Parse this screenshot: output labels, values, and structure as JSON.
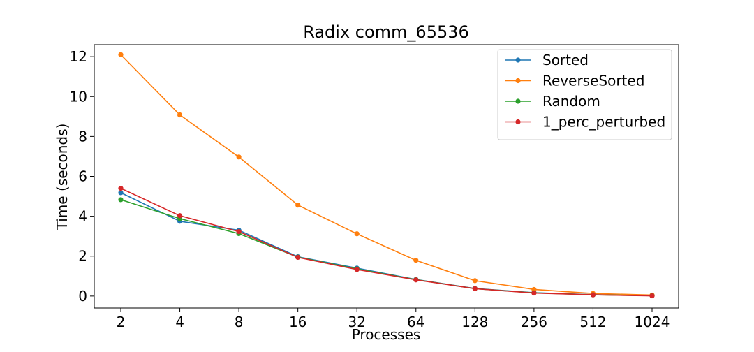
{
  "chart_data": {
    "type": "line",
    "title": "Radix comm_65536",
    "xlabel": "Processes",
    "ylabel": "Time (seconds)",
    "categories": [
      "2",
      "4",
      "8",
      "16",
      "32",
      "64",
      "128",
      "256",
      "512",
      "1024"
    ],
    "ylim": [
      -0.6,
      12.6
    ],
    "yticks": [
      0,
      2,
      4,
      6,
      8,
      10,
      12
    ],
    "grid": false,
    "legend_position": "top-right",
    "series": [
      {
        "name": "Sorted",
        "color": "#1f77b4",
        "values": [
          5.18,
          3.75,
          3.3,
          1.97,
          1.4,
          0.83,
          0.38,
          0.17,
          0.07,
          0.02
        ]
      },
      {
        "name": "ReverseSorted",
        "color": "#ff7f0e",
        "values": [
          12.1,
          9.08,
          6.97,
          4.56,
          3.12,
          1.79,
          0.77,
          0.33,
          0.13,
          0.05
        ]
      },
      {
        "name": "Random",
        "color": "#2ca02c",
        "values": [
          4.83,
          3.88,
          3.13,
          1.95,
          1.36,
          0.82,
          0.37,
          0.16,
          0.06,
          0.02
        ]
      },
      {
        "name": "1_perc_perturbed",
        "color": "#d62728",
        "values": [
          5.4,
          4.03,
          3.23,
          1.94,
          1.33,
          0.81,
          0.37,
          0.15,
          0.06,
          0.01
        ]
      }
    ]
  }
}
